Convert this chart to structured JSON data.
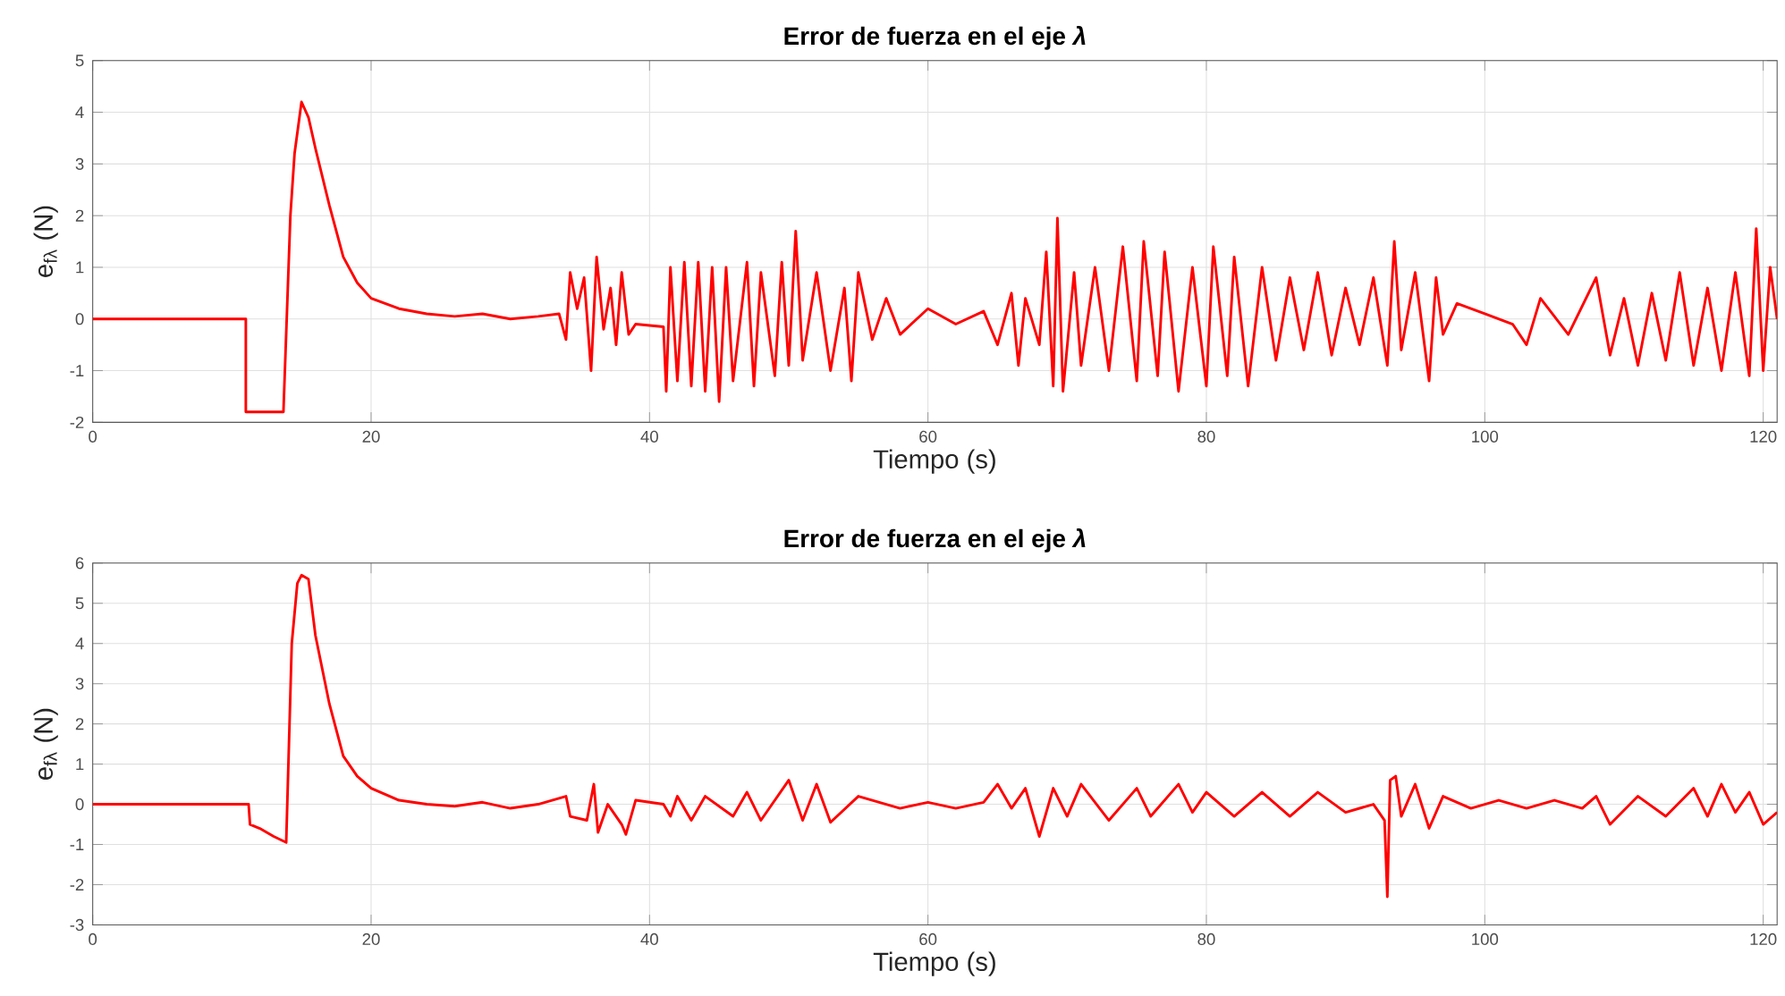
{
  "chart_data": [
    {
      "type": "line",
      "title": "Error de fuerza en el eje *λ*",
      "xlabel": "Tiempo (s)",
      "ylabel": "e$_{fλ}$ (N)",
      "xlim": [
        0,
        121
      ],
      "ylim": [
        -2,
        5
      ],
      "xticks": [
        0,
        20,
        40,
        60,
        80,
        100,
        120
      ],
      "yticks": [
        -2,
        -1,
        0,
        1,
        2,
        3,
        4,
        5
      ],
      "grid": true,
      "series": [
        {
          "color": "#ff0000",
          "x": [
            0,
            11,
            11,
            13.7,
            14.2,
            14.5,
            15,
            15.5,
            16,
            17,
            18,
            19,
            20,
            22,
            24,
            26,
            28,
            30,
            32,
            33.5,
            34,
            34.3,
            34.8,
            35.3,
            35.8,
            36.2,
            36.7,
            37.2,
            37.6,
            38,
            38.5,
            39,
            41,
            41.2,
            41.5,
            42,
            42.5,
            43,
            43.5,
            44,
            44.5,
            45,
            45.5,
            46,
            47,
            47.5,
            48,
            49,
            49.5,
            50,
            50.5,
            51,
            52,
            53,
            54,
            54.5,
            55,
            56,
            57,
            58,
            60,
            62,
            64,
            65,
            66,
            66.5,
            67,
            68,
            68.5,
            69,
            69.3,
            69.7,
            70.5,
            71,
            72,
            73,
            74,
            75,
            75.5,
            76.5,
            77,
            78,
            79,
            80,
            80.5,
            81.5,
            82,
            83,
            84,
            85,
            86,
            87,
            88,
            89,
            90,
            91,
            92,
            93,
            93.5,
            94,
            95,
            96,
            96.5,
            97,
            98,
            100,
            102,
            103,
            104,
            106,
            108,
            109,
            110,
            111,
            112,
            113,
            114,
            115,
            116,
            117,
            118,
            119,
            119.5,
            120,
            120.5,
            121
          ],
          "values": [
            0,
            0,
            -1.8,
            -1.8,
            2,
            3.2,
            4.2,
            3.9,
            3.3,
            2.2,
            1.2,
            0.7,
            0.4,
            0.2,
            0.1,
            0.05,
            0.1,
            0,
            0.05,
            0.1,
            -0.4,
            0.9,
            0.2,
            0.8,
            -1,
            1.2,
            -0.2,
            0.6,
            -0.5,
            0.9,
            -0.3,
            -0.1,
            -0.15,
            -1.4,
            1,
            -1.2,
            1.1,
            -1.3,
            1.1,
            -1.4,
            1,
            -1.6,
            1,
            -1.2,
            1.1,
            -1.3,
            0.9,
            -1.1,
            1.1,
            -0.9,
            1.7,
            -0.8,
            0.9,
            -1,
            0.6,
            -1.2,
            0.9,
            -0.4,
            0.4,
            -0.3,
            0.2,
            -0.1,
            0.15,
            -0.5,
            0.5,
            -0.9,
            0.4,
            -0.5,
            1.3,
            -1.3,
            1.95,
            -1.4,
            0.9,
            -0.9,
            1,
            -1,
            1.4,
            -1.2,
            1.5,
            -1.1,
            1.3,
            -1.4,
            1,
            -1.3,
            1.4,
            -1.1,
            1.2,
            -1.3,
            1,
            -0.8,
            0.8,
            -0.6,
            0.9,
            -0.7,
            0.6,
            -0.5,
            0.8,
            -0.9,
            1.5,
            -0.6,
            0.9,
            -1.2,
            0.8,
            -0.3,
            0.3,
            0.1,
            -0.1,
            -0.5,
            0.4,
            -0.3,
            0.8,
            -0.7,
            0.4,
            -0.9,
            0.5,
            -0.8,
            0.9,
            -0.9,
            0.6,
            -1,
            0.9,
            -1.1,
            1.75,
            -1,
            1,
            0
          ]
        }
      ]
    },
    {
      "type": "line",
      "title": "Error de fuerza en el eje *λ*",
      "xlabel": "Tiempo (s)",
      "ylabel": "e$_{fλ}$ (N)",
      "xlim": [
        0,
        121
      ],
      "ylim": [
        -3,
        6
      ],
      "xticks": [
        0,
        20,
        40,
        60,
        80,
        100,
        120
      ],
      "yticks": [
        -3,
        -2,
        -1,
        0,
        1,
        2,
        3,
        4,
        5,
        6
      ],
      "grid": true,
      "series": [
        {
          "color": "#ff0000",
          "x": [
            0,
            11.2,
            11.3,
            12,
            13,
            13.9,
            14.3,
            14.7,
            15,
            15.5,
            16,
            17,
            18,
            19,
            20,
            22,
            24,
            26,
            28,
            30,
            32,
            34,
            34.3,
            35.5,
            36,
            36.3,
            37,
            38,
            38.3,
            39,
            41,
            41.5,
            42,
            43,
            44,
            46,
            47,
            48,
            50,
            51,
            52,
            53,
            55,
            58,
            60,
            62,
            64,
            65,
            66,
            67,
            68,
            69,
            70,
            71,
            73,
            75,
            76,
            78,
            79,
            80,
            82,
            84,
            86,
            88,
            90,
            92,
            92.8,
            93,
            93.2,
            93.6,
            94,
            95,
            96,
            97,
            99,
            101,
            103,
            105,
            107,
            108,
            109,
            111,
            113,
            115,
            116,
            117,
            118,
            119,
            120,
            121
          ],
          "values": [
            0,
            0,
            -0.5,
            -0.6,
            -0.8,
            -0.95,
            4,
            5.5,
            5.7,
            5.6,
            4.2,
            2.5,
            1.2,
            0.7,
            0.4,
            0.1,
            0,
            -0.05,
            0.05,
            -0.1,
            0,
            0.2,
            -0.3,
            -0.4,
            0.5,
            -0.7,
            0,
            -0.5,
            -0.75,
            0.1,
            0,
            -0.3,
            0.2,
            -0.4,
            0.2,
            -0.3,
            0.3,
            -0.4,
            0.6,
            -0.4,
            0.5,
            -0.45,
            0.2,
            -0.1,
            0.05,
            -0.1,
            0.05,
            0.5,
            -0.1,
            0.4,
            -0.8,
            0.4,
            -0.3,
            0.5,
            -0.4,
            0.4,
            -0.3,
            0.5,
            -0.2,
            0.3,
            -0.3,
            0.3,
            -0.3,
            0.3,
            -0.2,
            0,
            -0.4,
            -2.3,
            0.6,
            0.7,
            -0.3,
            0.5,
            -0.6,
            0.2,
            -0.1,
            0.1,
            -0.1,
            0.1,
            -0.1,
            0.2,
            -0.5,
            0.2,
            -0.3,
            0.4,
            -0.3,
            0.5,
            -0.2,
            0.3,
            -0.5,
            -0.2
          ]
        }
      ]
    }
  ]
}
